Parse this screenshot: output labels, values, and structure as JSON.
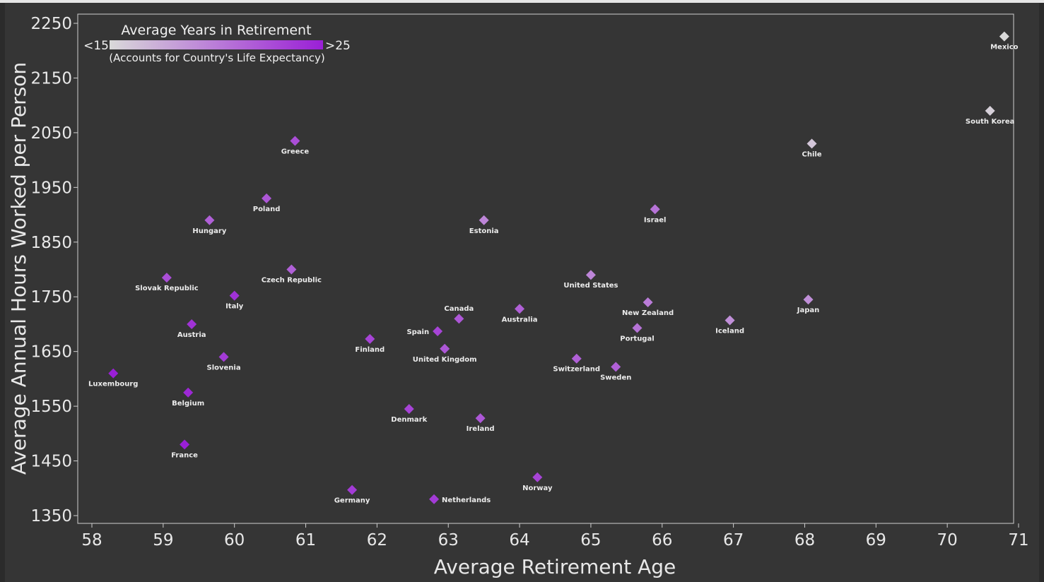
{
  "chart_data": {
    "type": "scatter",
    "title": "",
    "xlabel": "Average Retirement Age",
    "ylabel": "Average Annual Hours Worked per Person",
    "xlim": [
      58,
      71
    ],
    "ylim": [
      1350,
      2250
    ],
    "xticks": [
      58,
      59,
      60,
      61,
      62,
      63,
      64,
      65,
      66,
      67,
      68,
      69,
      70,
      71
    ],
    "yticks": [
      1350,
      1450,
      1550,
      1650,
      1750,
      1850,
      1950,
      2050,
      2150,
      2250
    ],
    "grid": false,
    "legend": {
      "title": "Average Years in Retirement",
      "subtitle": "(Accounts for Country's Life Expectancy)",
      "min_label": "<15",
      "max_label": ">25",
      "color_low": "#d9d9d9",
      "color_high": "#9a1fd6",
      "placement": "top-left"
    },
    "points": [
      {
        "country": "Mexico",
        "x": 70.8,
        "y": 2226,
        "shade": 0.0
      },
      {
        "country": "South Korea",
        "x": 70.6,
        "y": 2090,
        "shade": 0.05
      },
      {
        "country": "Chile",
        "x": 68.1,
        "y": 2030,
        "shade": 0.1
      },
      {
        "country": "Greece",
        "x": 60.85,
        "y": 2035,
        "shade": 0.75
      },
      {
        "country": "Poland",
        "x": 60.45,
        "y": 1930,
        "shade": 0.7
      },
      {
        "country": "Hungary",
        "x": 59.65,
        "y": 1890,
        "shade": 0.65
      },
      {
        "country": "Estonia",
        "x": 63.5,
        "y": 1890,
        "shade": 0.45
      },
      {
        "country": "Israel",
        "x": 65.9,
        "y": 1910,
        "shade": 0.55
      },
      {
        "country": "Czech Republic",
        "x": 60.8,
        "y": 1800,
        "shade": 0.65
      },
      {
        "country": "Slovak Republic",
        "x": 59.05,
        "y": 1785,
        "shade": 0.75
      },
      {
        "country": "United States",
        "x": 65.0,
        "y": 1790,
        "shade": 0.45
      },
      {
        "country": "Italy",
        "x": 60.0,
        "y": 1752,
        "shade": 0.9
      },
      {
        "country": "Canada",
        "x": 63.15,
        "y": 1710,
        "shade": 0.7
      },
      {
        "country": "Australia",
        "x": 64.0,
        "y": 1728,
        "shade": 0.65
      },
      {
        "country": "New Zealand",
        "x": 65.8,
        "y": 1740,
        "shade": 0.5
      },
      {
        "country": "Japan",
        "x": 68.05,
        "y": 1745,
        "shade": 0.4
      },
      {
        "country": "Iceland",
        "x": 66.95,
        "y": 1707,
        "shade": 0.4
      },
      {
        "country": "Austria",
        "x": 59.4,
        "y": 1700,
        "shade": 0.9
      },
      {
        "country": "Spain",
        "x": 62.85,
        "y": 1687,
        "shade": 0.8
      },
      {
        "country": "Portugal",
        "x": 65.65,
        "y": 1693,
        "shade": 0.55
      },
      {
        "country": "Finland",
        "x": 61.9,
        "y": 1673,
        "shade": 0.8
      },
      {
        "country": "United Kingdom",
        "x": 62.95,
        "y": 1655,
        "shade": 0.7
      },
      {
        "country": "Slovenia",
        "x": 59.85,
        "y": 1640,
        "shade": 0.85
      },
      {
        "country": "Switzerland",
        "x": 64.8,
        "y": 1637,
        "shade": 0.65
      },
      {
        "country": "Sweden",
        "x": 65.35,
        "y": 1622,
        "shade": 0.65
      },
      {
        "country": "Luxembourg",
        "x": 58.3,
        "y": 1610,
        "shade": 1.0
      },
      {
        "country": "Belgium",
        "x": 59.35,
        "y": 1575,
        "shade": 0.95
      },
      {
        "country": "Denmark",
        "x": 62.45,
        "y": 1545,
        "shade": 0.8
      },
      {
        "country": "Ireland",
        "x": 63.45,
        "y": 1528,
        "shade": 0.7
      },
      {
        "country": "France",
        "x": 59.3,
        "y": 1480,
        "shade": 1.0
      },
      {
        "country": "Norway",
        "x": 64.25,
        "y": 1420,
        "shade": 0.8
      },
      {
        "country": "Germany",
        "x": 61.65,
        "y": 1397,
        "shade": 0.85
      },
      {
        "country": "Netherlands",
        "x": 62.8,
        "y": 1380,
        "shade": 0.85
      }
    ]
  }
}
